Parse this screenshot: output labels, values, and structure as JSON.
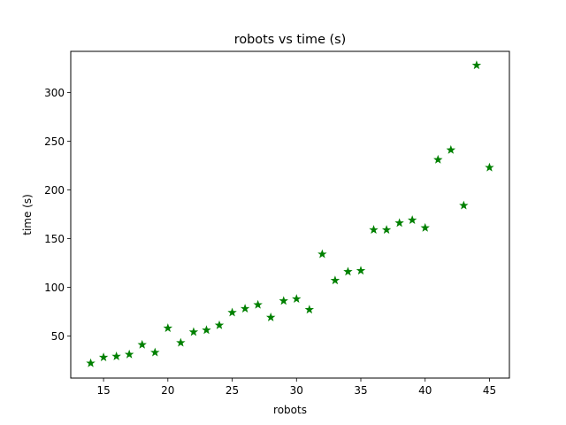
{
  "chart_data": {
    "type": "scatter",
    "title": "robots vs time (s)",
    "xlabel": "robots",
    "ylabel": "time (s)",
    "xlim": [
      12.45,
      46.55
    ],
    "ylim": [
      6.7,
      342.3
    ],
    "x_ticks": [
      15,
      20,
      25,
      30,
      35,
      40,
      45
    ],
    "y_ticks": [
      50,
      100,
      150,
      200,
      250,
      300
    ],
    "grid": false,
    "marker": "star",
    "color": "#008000",
    "series": [
      {
        "x": [
          14,
          15,
          16,
          17,
          18,
          19,
          20,
          21,
          22,
          23,
          24,
          25,
          26,
          27,
          28,
          29,
          30,
          31,
          32,
          33,
          34,
          35,
          36,
          37,
          38,
          39,
          40,
          41,
          42,
          43,
          44,
          45
        ],
        "y": [
          22,
          28,
          29,
          31,
          41,
          33,
          58,
          43,
          54,
          56,
          61,
          74,
          78,
          82,
          69,
          86,
          88,
          77,
          134,
          107,
          116,
          117,
          159,
          159,
          166,
          169,
          161,
          231,
          241,
          184,
          328,
          223
        ]
      }
    ]
  }
}
